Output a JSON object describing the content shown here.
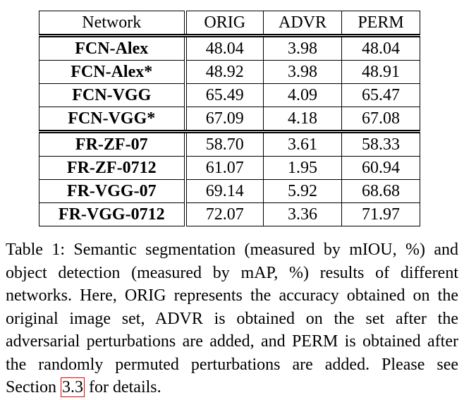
{
  "table": {
    "headers": [
      "Network",
      "ORIG",
      "ADVR",
      "PERM"
    ],
    "groups": [
      {
        "rows": [
          {
            "network": "FCN-Alex",
            "orig": "48.04",
            "advr": "3.98",
            "perm": "48.04"
          },
          {
            "network": "FCN-Alex*",
            "orig": "48.92",
            "advr": "3.98",
            "perm": "48.91"
          },
          {
            "network": "FCN-VGG",
            "orig": "65.49",
            "advr": "4.09",
            "perm": "65.47"
          },
          {
            "network": "FCN-VGG*",
            "orig": "67.09",
            "advr": "4.18",
            "perm": "67.08"
          }
        ]
      },
      {
        "rows": [
          {
            "network": "FR-ZF-07",
            "orig": "58.70",
            "advr": "3.61",
            "perm": "58.33"
          },
          {
            "network": "FR-ZF-0712",
            "orig": "61.07",
            "advr": "1.95",
            "perm": "60.94"
          },
          {
            "network": "FR-VGG-07",
            "orig": "69.14",
            "advr": "5.92",
            "perm": "68.68"
          },
          {
            "network": "FR-VGG-0712",
            "orig": "72.07",
            "advr": "3.36",
            "perm": "71.97"
          }
        ]
      }
    ]
  },
  "caption": {
    "text_before": "Table 1: Semantic segmentation (measured by mIOU, %) and object detection (measured by mAP, %) results of different networks. Here, ORIG represents the accuracy obtained on the original image set, ADVR is obtained on the set after the adversarial perturbations are added, and PERM is obtained after the randomly permuted perturbations are added. Please see Section",
    "section_ref": "3.3",
    "text_after": "for details."
  },
  "colors": {
    "reference_box": "#e00000"
  }
}
